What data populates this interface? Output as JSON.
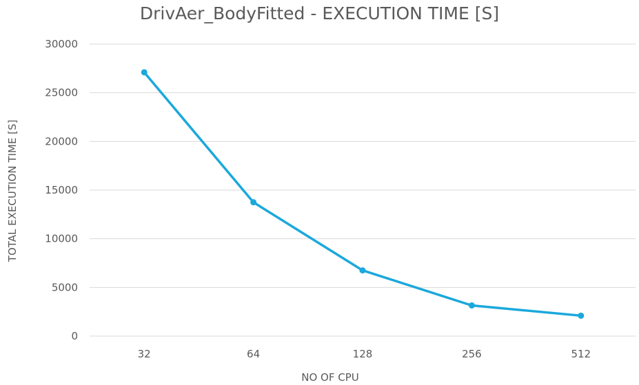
{
  "chart_data": {
    "type": "line",
    "title": "DrivAer_BodyFitted - EXECUTION TIME [S]",
    "xlabel": "NO OF CPU",
    "ylabel": "TOTAL EXECUTION TIME [S]",
    "categories": [
      "32",
      "64",
      "128",
      "256",
      "512"
    ],
    "series": [
      {
        "name": "",
        "values": [
          27100,
          13750,
          6750,
          3150,
          2100
        ]
      }
    ],
    "ylim": [
      0,
      30000
    ],
    "yticks": [
      0,
      5000,
      10000,
      15000,
      20000,
      25000,
      30000
    ],
    "grid": true,
    "legend": "none",
    "colors": {
      "line": "#1BA8DC",
      "grid": "#D9D9D9",
      "text": "#595959"
    }
  }
}
